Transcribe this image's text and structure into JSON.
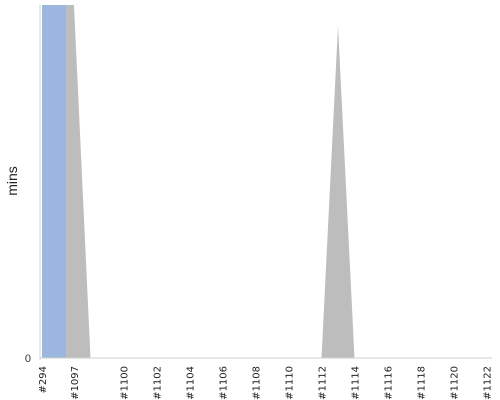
{
  "chart_data": {
    "type": "area",
    "ylabel": "mins",
    "y_tick_labels": [
      "0"
    ],
    "ylim": [
      0,
      100
    ],
    "categories": [
      "#294",
      "#1097",
      "#1100",
      "#1102",
      "#1104",
      "#1106",
      "#1108",
      "#1110",
      "#1112",
      "#1114",
      "#1116",
      "#1118",
      "#1120",
      "#1122"
    ],
    "blue_series": {
      "color": "#9bb6df",
      "x": [
        "#294",
        "#1097"
      ],
      "y": [
        100,
        100
      ]
    },
    "gray_series": {
      "color": "#bdbdbd",
      "x": [
        "#294",
        "#1097",
        "#1098",
        "#1112",
        "#1113",
        "#1114"
      ],
      "y": [
        100,
        100,
        0,
        0,
        94,
        0
      ]
    },
    "grid": false
  }
}
